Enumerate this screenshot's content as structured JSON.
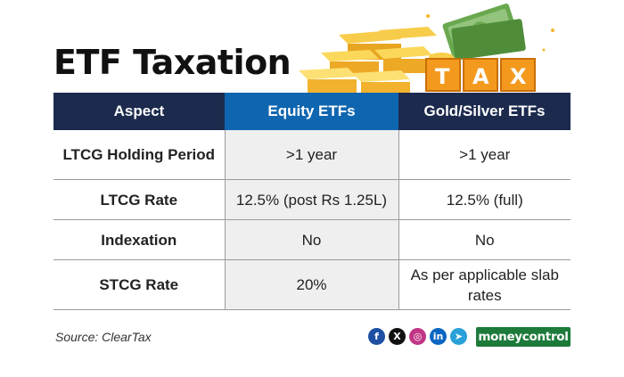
{
  "title": "ETF Taxation",
  "illustration": {
    "tax_sign_letters": [
      "T",
      "A",
      "X"
    ],
    "icon": "gold-bars-cash-tax-illustration"
  },
  "table": {
    "headers": [
      "Aspect",
      "Equity ETFs",
      "Gold/Silver ETFs"
    ],
    "rows": [
      {
        "aspect": "LTCG Holding Period",
        "equity": ">1 year",
        "gold": ">1 year"
      },
      {
        "aspect": "LTCG Rate",
        "equity": "12.5% (post Rs 1.25L)",
        "gold": "12.5% (full)"
      },
      {
        "aspect": "Indexation",
        "equity": "No",
        "gold": "No"
      },
      {
        "aspect": "STCG Rate",
        "equity": "20%",
        "gold": "As per applicable slab rates"
      }
    ]
  },
  "footer": {
    "source": "Source: ClearTax",
    "social": [
      {
        "icon": "facebook-icon",
        "glyph": "f"
      },
      {
        "icon": "x-icon",
        "glyph": "X"
      },
      {
        "icon": "instagram-icon",
        "glyph": "◎"
      },
      {
        "icon": "linkedin-icon",
        "glyph": "in"
      },
      {
        "icon": "telegram-icon",
        "glyph": "➤"
      }
    ],
    "brand": "moneycontrol"
  },
  "colors": {
    "header_dark": "#1c2a4e",
    "header_blue": "#0f66b0",
    "middle_column_bg": "#efefef",
    "gold": "#f4b52c",
    "tax_orange": "#f39a1e",
    "brand_green": "#1c7a3a"
  }
}
